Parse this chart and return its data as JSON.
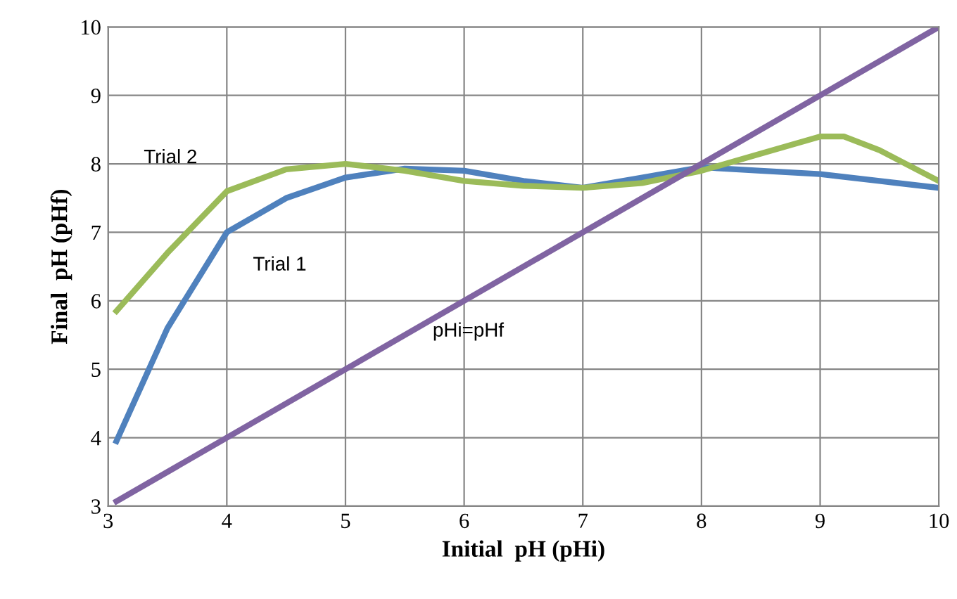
{
  "chart_data": {
    "type": "line",
    "xlabel": "Initial  pH (pHi)",
    "ylabel": "Final  pH (pHf)",
    "xlim": [
      3,
      10
    ],
    "ylim": [
      3,
      10
    ],
    "xticks": [
      3,
      4,
      5,
      6,
      7,
      8,
      9,
      10
    ],
    "yticks": [
      3,
      4,
      5,
      6,
      7,
      8,
      9,
      10
    ],
    "grid": true,
    "marker": "none",
    "line_style": "solid",
    "series": [
      {
        "name": "Trial 1",
        "color": "#4f81bd",
        "x": [
          3.07,
          3.5,
          4,
          4.5,
          5,
          5.5,
          6,
          6.5,
          7,
          7.5,
          8,
          8.5,
          9,
          9.5,
          10
        ],
        "values": [
          3.95,
          5.6,
          7.0,
          7.5,
          7.8,
          7.93,
          7.9,
          7.75,
          7.65,
          7.8,
          7.95,
          7.9,
          7.85,
          7.75,
          7.65
        ]
      },
      {
        "name": "Trial 2",
        "color": "#9bbb59",
        "x": [
          3.07,
          3.5,
          4,
          4.5,
          5,
          5.5,
          6,
          6.5,
          7,
          7.5,
          8,
          8.5,
          9,
          9.2,
          9.5,
          10
        ],
        "values": [
          5.85,
          6.7,
          7.6,
          7.92,
          8.0,
          7.9,
          7.75,
          7.68,
          7.65,
          7.72,
          7.9,
          8.15,
          8.4,
          8.4,
          8.2,
          7.75
        ]
      },
      {
        "name": "pHi=pHf",
        "color": "#8064a2",
        "x": [
          3.07,
          10
        ],
        "values": [
          3.07,
          10
        ]
      }
    ]
  }
}
